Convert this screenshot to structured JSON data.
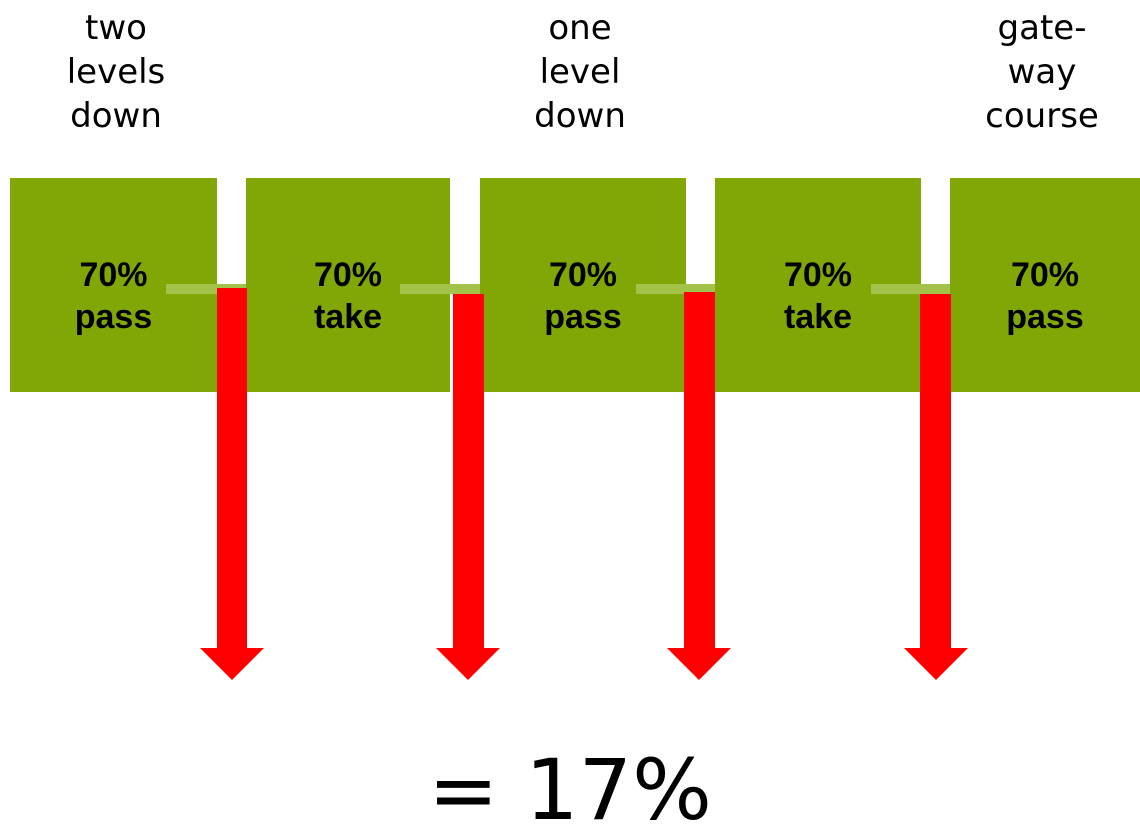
{
  "headers": [
    [
      "two",
      "levels",
      "down"
    ],
    [
      "one",
      "level",
      "down"
    ],
    [
      "gate-",
      "way",
      "course"
    ]
  ],
  "boxes": [
    {
      "percent": "70%",
      "label": "pass"
    },
    {
      "percent": "70%",
      "label": "take"
    },
    {
      "percent": "70%",
      "label": "pass"
    },
    {
      "percent": "70%",
      "label": "take"
    },
    {
      "percent": "70%",
      "label": "pass"
    }
  ],
  "result": "= 17%",
  "colors": {
    "box": "#80a705",
    "connector": "#a2c24a",
    "arrow": "#ff0000"
  }
}
